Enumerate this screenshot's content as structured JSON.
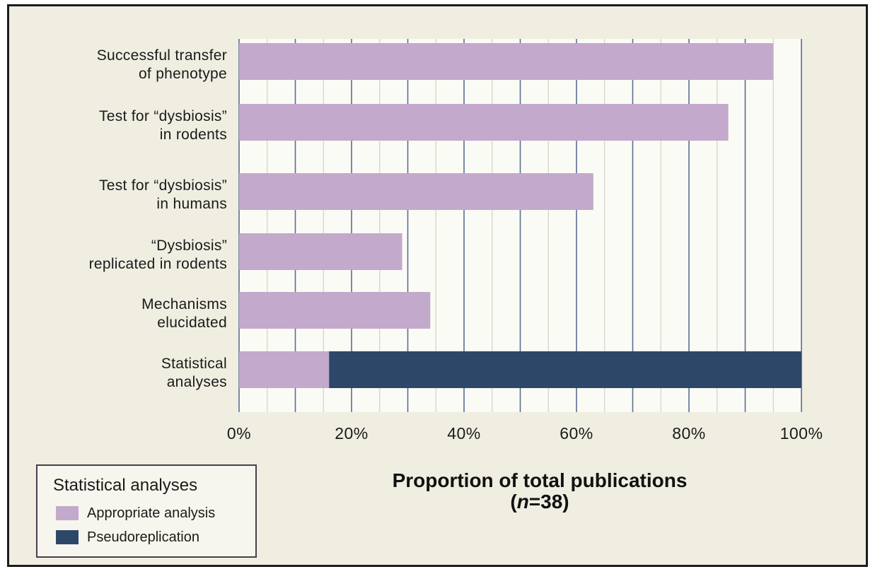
{
  "chart_data": {
    "type": "bar",
    "orientation": "horizontal",
    "stacked": true,
    "categories": [
      [
        "Successful transfer",
        "of phenotype"
      ],
      [
        "Test for “dysbiosis”",
        "in rodents"
      ],
      [
        "Test for “dysbiosis”",
        "in humans"
      ],
      [
        "“Dysbiosis”",
        "replicated in rodents"
      ],
      [
        "Mechanisms",
        "elucidated"
      ],
      [
        "Statistical",
        "analyses"
      ]
    ],
    "series": [
      {
        "name": "Appropriate analysis",
        "color": "#c3a9cb",
        "values": [
          95,
          87,
          63,
          29,
          34,
          16
        ]
      },
      {
        "name": "Pseudoreplication",
        "color": "#2d4769",
        "values": [
          0,
          0,
          0,
          0,
          0,
          84
        ]
      }
    ],
    "xlim": [
      0,
      100
    ],
    "x_ticks": [
      0,
      20,
      40,
      60,
      80,
      100
    ],
    "x_tick_labels": [
      "0%",
      "20%",
      "40%",
      "60%",
      "80%",
      "100%"
    ],
    "xlabel_line1": "Proportion of total publications",
    "xlabel_line2_italic": "n",
    "xlabel_line2_rest": "=38)",
    "xlabel_line2_open": "(",
    "grid": true,
    "legend_position": "bottom-left",
    "legend_title": "Statistical analyses"
  }
}
